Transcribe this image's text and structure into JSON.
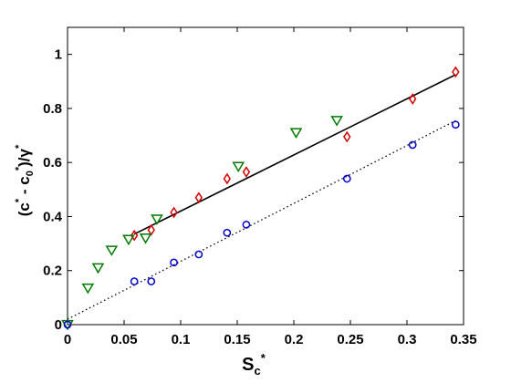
{
  "chart_data": {
    "type": "scatter",
    "title": "",
    "xlim": [
      0,
      0.35
    ],
    "ylim": [
      0,
      1.1
    ],
    "xticks": [
      "0",
      "0.05",
      "0.1",
      "0.15",
      "0.2",
      "0.25",
      "0.3",
      "0.35"
    ],
    "xtick_values": [
      0,
      0.05,
      0.1,
      0.15,
      0.2,
      0.25,
      0.3,
      0.35
    ],
    "yticks": [
      "0",
      "0.2",
      "0.4",
      "0.6",
      "0.8",
      "1"
    ],
    "ytick_values": [
      0,
      0.2,
      0.4,
      0.6,
      0.8,
      1
    ],
    "xlabel": {
      "base": "S",
      "sub": "c",
      "sup": "*"
    },
    "ylabel": {
      "text": "(c",
      "sup1": "*",
      "mid": " - c",
      "sub0": "0",
      "sup0": "*",
      "end": ")/γ",
      "sup2": "*"
    },
    "grid": false,
    "series": [
      {
        "marker": "diamond",
        "color": "#d40000",
        "points": [
          [
            0.059,
            0.33
          ],
          [
            0.074,
            0.35
          ],
          [
            0.094,
            0.415
          ],
          [
            0.116,
            0.47
          ],
          [
            0.141,
            0.54
          ],
          [
            0.158,
            0.565
          ],
          [
            0.247,
            0.695
          ],
          [
            0.305,
            0.835
          ],
          [
            0.343,
            0.935
          ]
        ]
      },
      {
        "marker": "triangle-down",
        "color": "#007a00",
        "points": [
          [
            0.0,
            0.0
          ],
          [
            0.018,
            0.135
          ],
          [
            0.027,
            0.21
          ],
          [
            0.039,
            0.275
          ],
          [
            0.054,
            0.315
          ],
          [
            0.069,
            0.32
          ],
          [
            0.079,
            0.39
          ],
          [
            0.151,
            0.585
          ],
          [
            0.202,
            0.71
          ],
          [
            0.238,
            0.755
          ]
        ]
      },
      {
        "marker": "circle",
        "color": "#0000cc",
        "points": [
          [
            0.0,
            0.0
          ],
          [
            0.059,
            0.16
          ],
          [
            0.074,
            0.16
          ],
          [
            0.094,
            0.23
          ],
          [
            0.116,
            0.26
          ],
          [
            0.141,
            0.34
          ],
          [
            0.158,
            0.37
          ],
          [
            0.247,
            0.54
          ],
          [
            0.305,
            0.665
          ],
          [
            0.343,
            0.74
          ]
        ]
      }
    ],
    "lines": [
      {
        "style": "solid",
        "color": "#000000",
        "x": [
          0.059,
          0.343
        ],
        "y": [
          0.335,
          0.925
        ]
      },
      {
        "style": "dotted",
        "color": "#000000",
        "x": [
          0.0,
          0.343
        ],
        "y": [
          0.02,
          0.755
        ]
      }
    ]
  }
}
